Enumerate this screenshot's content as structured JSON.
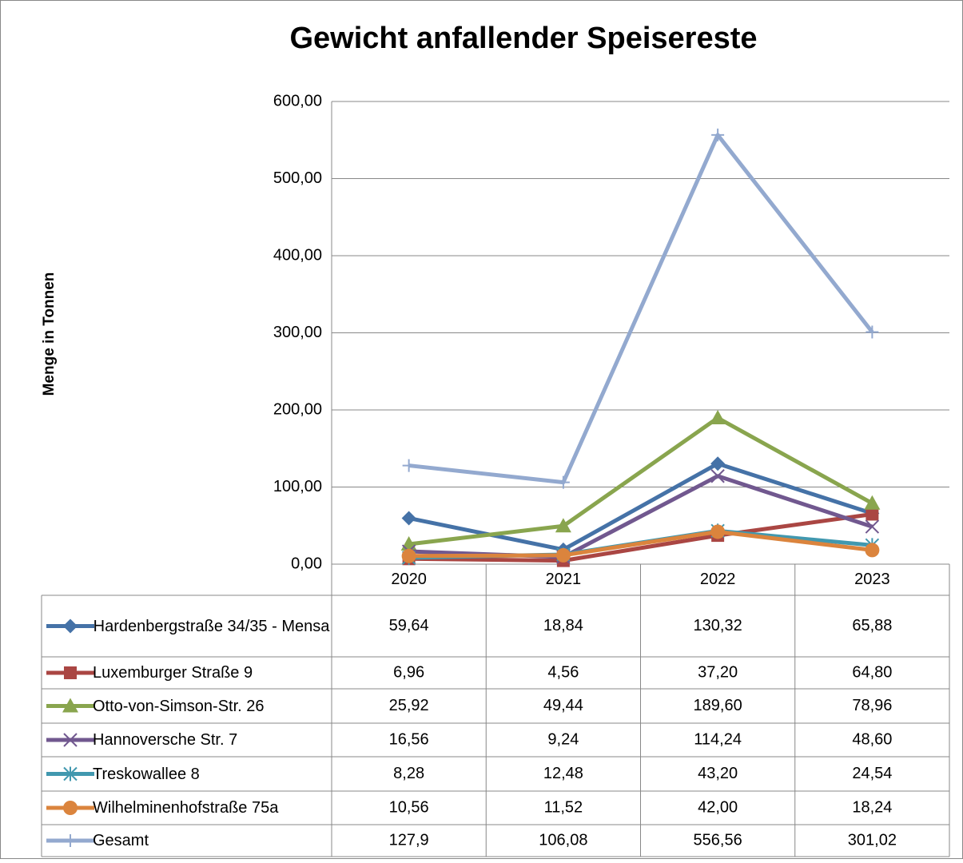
{
  "chart_data": {
    "type": "line",
    "title": "Gewicht anfallender Speisereste",
    "y_label": "Menge in Tonnen",
    "categories": [
      "2020",
      "2021",
      "2022",
      "2023"
    ],
    "ylim": [
      0,
      600
    ],
    "yticks": [
      {
        "value": 0,
        "label": "0,00"
      },
      {
        "value": 100,
        "label": "100,00"
      },
      {
        "value": 200,
        "label": "200,00"
      },
      {
        "value": 300,
        "label": "300,00"
      },
      {
        "value": 400,
        "label": "400,00"
      },
      {
        "value": 500,
        "label": "500,00"
      },
      {
        "value": 600,
        "label": "600,00"
      }
    ],
    "grid": true,
    "series": [
      {
        "name": "Hardenbergstraße 34/35 - Mensa",
        "color": "#4572a7",
        "marker": "diamond",
        "values": [
          59.64,
          18.84,
          130.32,
          65.88
        ],
        "value_labels": [
          "59,64",
          "18,84",
          "130,32",
          "65,88"
        ]
      },
      {
        "name": "Luxemburger Straße 9",
        "color": "#aa4643",
        "marker": "square",
        "values": [
          6.96,
          4.56,
          37.2,
          64.8
        ],
        "value_labels": [
          "6,96",
          "4,56",
          "37,20",
          "64,80"
        ]
      },
      {
        "name": "Otto-von-Simson-Str. 26",
        "color": "#89a54e",
        "marker": "triangle",
        "values": [
          25.92,
          49.44,
          189.6,
          78.96
        ],
        "value_labels": [
          "25,92",
          "49,44",
          "189,60",
          "78,96"
        ]
      },
      {
        "name": "Hannoversche Str. 7",
        "color": "#71588f",
        "marker": "x",
        "values": [
          16.56,
          9.24,
          114.24,
          48.6
        ],
        "value_labels": [
          "16,56",
          "9,24",
          "114,24",
          "48,60"
        ]
      },
      {
        "name": "Treskowallee 8",
        "color": "#4198af",
        "marker": "star",
        "values": [
          8.28,
          12.48,
          43.2,
          24.54
        ],
        "value_labels": [
          "8,28",
          "12,48",
          "43,20",
          "24,54"
        ]
      },
      {
        "name": "Wilhelminenhofstraße 75a",
        "color": "#db843d",
        "marker": "circle",
        "values": [
          10.56,
          11.52,
          42.0,
          18.24
        ],
        "value_labels": [
          "10,56",
          "11,52",
          "42,00",
          "18,24"
        ]
      },
      {
        "name": "Gesamt",
        "color": "#93a9cf",
        "marker": "plus",
        "values": [
          127.9,
          106.08,
          556.56,
          301.02
        ],
        "value_labels": [
          "127,9",
          "106,08",
          "556,56",
          "301,02"
        ]
      }
    ]
  }
}
